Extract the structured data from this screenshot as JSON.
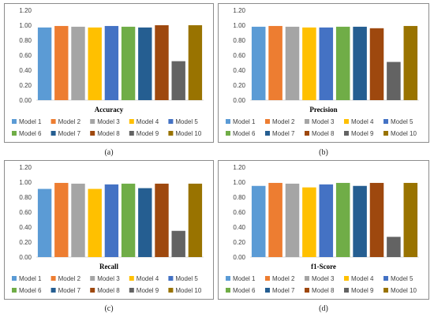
{
  "models": [
    "Model 1",
    "Model 2",
    "Model 3",
    "Model 4",
    "Model 5",
    "Model 6",
    "Model 7",
    "Model 8",
    "Model 9",
    "Model 10"
  ],
  "colors": [
    "#5b9bd5",
    "#ed7d31",
    "#a5a5a5",
    "#ffc000",
    "#4472c4",
    "#70ad47",
    "#255e91",
    "#9e480e",
    "#636363",
    "#997300"
  ],
  "chart_data": [
    {
      "type": "bar",
      "title": "Accuracy",
      "caption": "(a)",
      "categories": [
        "Model 1",
        "Model 2",
        "Model 3",
        "Model 4",
        "Model 5",
        "Model 6",
        "Model 7",
        "Model 8",
        "Model 9",
        "Model 10"
      ],
      "values": [
        0.97,
        0.99,
        0.98,
        0.97,
        0.99,
        0.98,
        0.97,
        1.0,
        0.52,
        1.0
      ],
      "ylim": [
        0,
        1.2
      ],
      "yticks": [
        "0.00",
        "0.20",
        "0.40",
        "0.60",
        "0.80",
        "1.00",
        "1.20"
      ],
      "legend": "bottom"
    },
    {
      "type": "bar",
      "title": "Precision",
      "caption": "(b)",
      "categories": [
        "Model 1",
        "Model 2",
        "Model 3",
        "Model 4",
        "Model 5",
        "Model 6",
        "Model 7",
        "Model 8",
        "Model 9",
        "Model 10"
      ],
      "values": [
        0.98,
        0.99,
        0.98,
        0.97,
        0.97,
        0.98,
        0.98,
        0.96,
        0.51,
        0.99
      ],
      "ylim": [
        0,
        1.2
      ],
      "yticks": [
        "0.00",
        "0.20",
        "0.40",
        "0.60",
        "0.80",
        "1.00",
        "1.20"
      ],
      "legend": "bottom"
    },
    {
      "type": "bar",
      "title": "Recall",
      "caption": "(c)",
      "categories": [
        "Model 1",
        "Model 2",
        "Model 3",
        "Model 4",
        "Model 5",
        "Model 6",
        "Model 7",
        "Model 8",
        "Model 9",
        "Model 10"
      ],
      "values": [
        0.91,
        0.99,
        0.98,
        0.91,
        0.97,
        0.98,
        0.92,
        0.98,
        0.35,
        0.98
      ],
      "ylim": [
        0,
        1.2
      ],
      "yticks": [
        "0.00",
        "0.20",
        "0.40",
        "0.60",
        "0.80",
        "1.00",
        "1.20"
      ],
      "legend": "bottom"
    },
    {
      "type": "bar",
      "title": "f1-Score",
      "caption": "(d)",
      "categories": [
        "Model 1",
        "Model 2",
        "Model 3",
        "Model 4",
        "Model 5",
        "Model 6",
        "Model 7",
        "Model 8",
        "Model 9",
        "Model 10"
      ],
      "values": [
        0.95,
        0.99,
        0.98,
        0.93,
        0.97,
        0.99,
        0.95,
        0.99,
        0.27,
        0.99
      ],
      "ylim": [
        0,
        1.2
      ],
      "yticks": [
        "0.00",
        "0.20",
        "0.40",
        "0.60",
        "0.80",
        "1.00",
        "1.20"
      ],
      "legend": "bottom"
    }
  ]
}
